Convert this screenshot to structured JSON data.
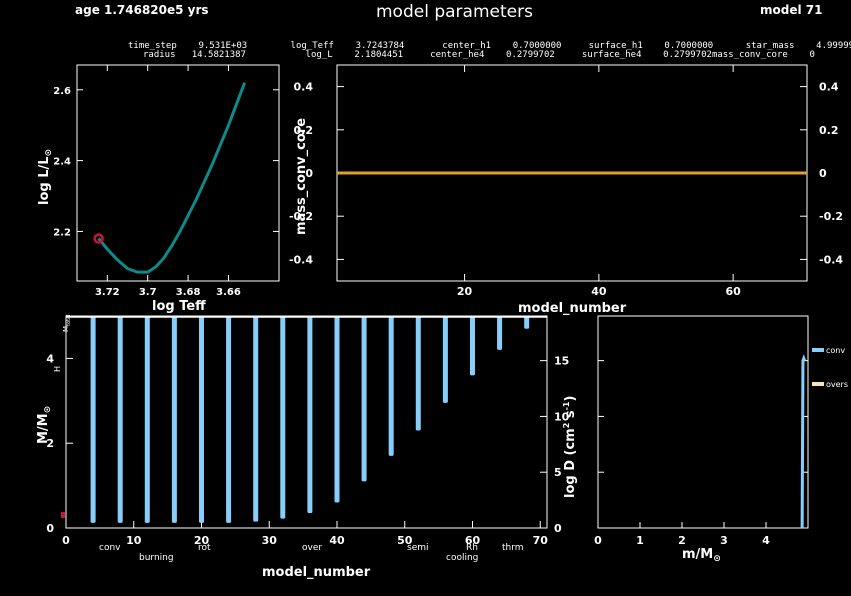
{
  "header": {
    "age": "age 1.746820e5 yrs",
    "title": "model parameters",
    "model": "model 71"
  },
  "info_table": {
    "row1": "time_step    9.531E+03        log_Teff    3.7243784       center_h1    0.7000000     surface_h1    0.7000000      star_mass    4.9999932",
    "row2": "radius   14.5821387           log_L    2.1804451     center_he4    0.2799702     surface_he4    0.2799702mass_conv_core    0"
  },
  "colors": {
    "hr_track": "#0e8a8a",
    "hr_marker": "#c8143c",
    "mass_conv_core_line": "#e0a030",
    "ylabel_hist": "#e0a030",
    "conv": "#87cefa",
    "overs": "#f5e6b0",
    "burning": "#ff4040",
    "rot": "#4060ff",
    "semi": "#b0b0b0",
    "cooling": "#4060ff",
    "thrm": "#c080ff"
  },
  "legend_kipp": {
    "conv": "conv",
    "burning": "burning",
    "rot": "rot",
    "over": "over",
    "semi": "semi",
    "rh": "Rh",
    "cooling": "cooling",
    "thrm": "thrm"
  },
  "legend_diff": {
    "conv": "conv",
    "overs": "overs"
  },
  "side_labels": {
    "htop": "H",
    "hstar": "M_star",
    "htop_left": "M_tot"
  },
  "chart_data": [
    {
      "id": "hr",
      "type": "line",
      "xlabel": "log Teff",
      "ylabel": "log L/L_sun",
      "xlim": [
        3.735,
        3.635
      ],
      "ylim": [
        2.06,
        2.67
      ],
      "xticks": [
        3.72,
        3.7,
        3.68,
        3.66
      ],
      "xtick_labels": [
        "3.72",
        "3.7",
        "3.68",
        "3.66"
      ],
      "yticks": [
        2.2,
        2.4,
        2.6
      ],
      "series": [
        {
          "x": [
            3.7243,
            3.72,
            3.715,
            3.71,
            3.705,
            3.7,
            3.696,
            3.692,
            3.688,
            3.684,
            3.68,
            3.676,
            3.672,
            3.668,
            3.664,
            3.66,
            3.656,
            3.652
          ],
          "y": [
            2.18,
            2.15,
            2.12,
            2.095,
            2.085,
            2.085,
            2.1,
            2.125,
            2.16,
            2.2,
            2.245,
            2.29,
            2.34,
            2.39,
            2.445,
            2.5,
            2.56,
            2.62
          ]
        }
      ],
      "marker": {
        "x": 3.7243,
        "y": 2.18
      }
    },
    {
      "id": "history",
      "type": "line",
      "xlabel": "model_number",
      "ylabel": "mass_conv_core",
      "xlim": [
        1,
        71
      ],
      "ylim": [
        -0.5,
        0.5
      ],
      "xticks": [
        20,
        40,
        60
      ],
      "yticks": [
        -0.4,
        -0.2,
        0,
        0.2,
        0.4
      ],
      "ytick_labels": [
        "-0.4",
        "-0.2",
        "0",
        "0.2",
        "0.4"
      ],
      "series": [
        {
          "name": "mass_conv_core",
          "x": [
            1,
            71
          ],
          "y": [
            0,
            0
          ]
        }
      ]
    },
    {
      "id": "kippenhahn",
      "type": "bar",
      "xlabel": "model_number",
      "ylabel": "M/M_sun",
      "right_ylabel": "log D (cm^2 s^-1)",
      "xlim": [
        0,
        71
      ],
      "ylim": [
        0,
        5.0
      ],
      "xticks": [
        0,
        10,
        20,
        30,
        40,
        50,
        60,
        70
      ],
      "yticks": [
        0,
        2,
        4
      ],
      "right_yticks": [
        0,
        5,
        10,
        15
      ],
      "right_ylim": [
        0,
        19
      ],
      "bars": {
        "x": [
          4,
          8,
          12,
          16,
          20,
          24,
          28,
          32,
          36,
          40,
          44,
          48,
          52,
          56,
          60,
          64,
          68
        ],
        "bottom": [
          0.12,
          0.12,
          0.12,
          0.12,
          0.12,
          0.12,
          0.15,
          0.22,
          0.35,
          0.6,
          1.1,
          1.7,
          2.3,
          2.95,
          3.6,
          4.2,
          4.7
        ],
        "top": [
          5.0,
          5.0,
          5.0,
          5.0,
          5.0,
          5.0,
          5.0,
          5.0,
          5.0,
          5.0,
          5.0,
          5.0,
          5.0,
          5.0,
          5.0,
          5.0,
          5.0
        ]
      }
    },
    {
      "id": "diffusion",
      "type": "line",
      "xlabel": "m/M_sun",
      "ylabel": "log D (cm^2 s^-1)",
      "xlim": [
        0,
        5.0
      ],
      "ylim": [
        0,
        19
      ],
      "xticks": [
        0,
        1,
        2,
        3,
        4
      ],
      "yticks": [
        0,
        5,
        10,
        15
      ],
      "series": [
        {
          "name": "conv",
          "x": [
            4.86,
            4.88,
            4.9,
            4.92
          ],
          "y": [
            0,
            15.0,
            15.2,
            15.0
          ]
        }
      ]
    }
  ]
}
